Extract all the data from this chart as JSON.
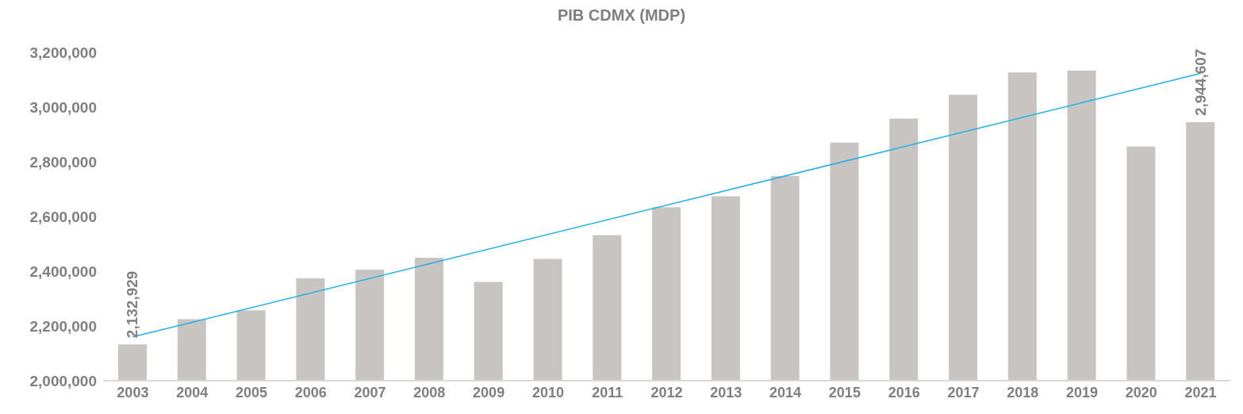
{
  "chart_data": {
    "type": "bar",
    "title": "PIB CDMX (MDP)",
    "categories": [
      "2003",
      "2004",
      "2005",
      "2006",
      "2007",
      "2008",
      "2009",
      "2010",
      "2011",
      "2012",
      "2013",
      "2014",
      "2015",
      "2016",
      "2017",
      "2018",
      "2019",
      "2020",
      "2021"
    ],
    "series": [
      {
        "color": "#c8c4c1",
        "values": [
          2132929,
          2225000,
          2257000,
          2374000,
          2406000,
          2449000,
          2361000,
          2445000,
          2532000,
          2634000,
          2674000,
          2748000,
          2870000,
          2958000,
          3045000,
          3127000,
          3133000,
          2856000,
          2944607
        ],
        "value_labels": [
          "2,132,929",
          null,
          null,
          null,
          null,
          null,
          null,
          null,
          null,
          null,
          null,
          null,
          null,
          null,
          null,
          null,
          null,
          null,
          "2,944,607"
        ]
      },
      {
        "type": "line",
        "color": "#1fb1e8",
        "values": [
          2160000,
          null,
          null,
          null,
          null,
          null,
          null,
          null,
          null,
          null,
          null,
          null,
          null,
          null,
          null,
          null,
          null,
          null,
          3123000
        ]
      }
    ],
    "ylim": [
      2000000,
      3200000
    ],
    "yticks": [
      {
        "value": 2000000,
        "label": "2,000,000"
      },
      {
        "value": 2200000,
        "label": "2,200,000"
      },
      {
        "value": 2400000,
        "label": "2,400,000"
      },
      {
        "value": 2600000,
        "label": "2,600,000"
      },
      {
        "value": 2800000,
        "label": "2,800,000"
      },
      {
        "value": 3000000,
        "label": "3,000,000"
      },
      {
        "value": 3200000,
        "label": "3,200,000"
      }
    ],
    "grid": false,
    "legend": false,
    "marker": "none"
  }
}
